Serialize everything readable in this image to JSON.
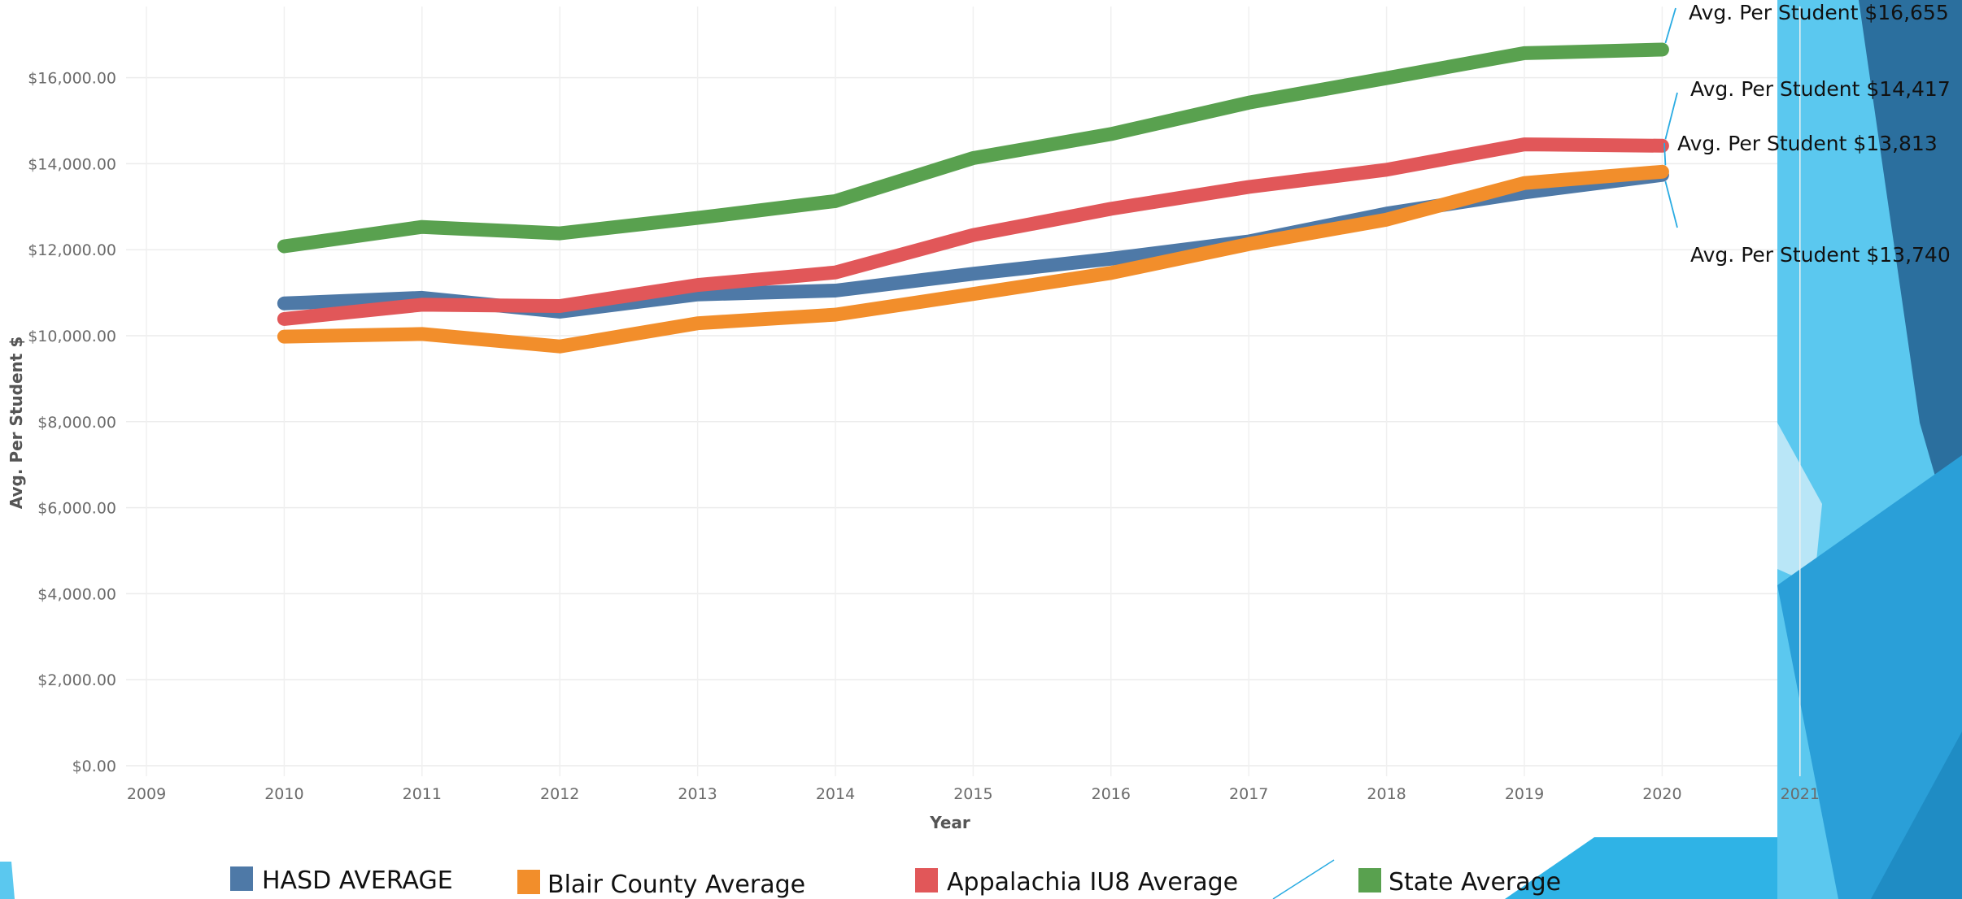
{
  "chart_data": {
    "type": "line",
    "title": "",
    "xlabel": "Year",
    "ylabel": "Avg. Per Student $",
    "x_ticks": [
      "2009",
      "2010",
      "2011",
      "2012",
      "2013",
      "2014",
      "2015",
      "2016",
      "2017",
      "2018",
      "2019",
      "2020",
      "2021"
    ],
    "y_ticks": [
      "$0.00",
      "$2,000.00",
      "$4,000.00",
      "$6,000.00",
      "$8,000.00",
      "$10,000.00",
      "$12,000.00",
      "$14,000.00",
      "$16,000.00"
    ],
    "xlim": [
      2009,
      2021
    ],
    "ylim": [
      0,
      17800
    ],
    "grid": true,
    "legend_position": "bottom",
    "x": [
      2010,
      2011,
      2012,
      2013,
      2014,
      2015,
      2016,
      2017,
      2018,
      2019,
      2020
    ],
    "series": [
      {
        "name": "HASD AVERAGE",
        "color": "#4e79a7",
        "values": [
          10750,
          10880,
          10560,
          10960,
          11050,
          11440,
          11790,
          12190,
          12840,
          13330,
          13740
        ]
      },
      {
        "name": "Blair County Average",
        "color": "#f28e2b",
        "values": [
          9980,
          10040,
          9750,
          10290,
          10490,
          10970,
          11460,
          12130,
          12700,
          13550,
          13813
        ]
      },
      {
        "name": "Appalachia IU8 Average",
        "color": "#e15759",
        "values": [
          10390,
          10720,
          10690,
          11180,
          11470,
          12340,
          12950,
          13460,
          13860,
          14450,
          14417
        ]
      },
      {
        "name": "State Average",
        "color": "#59a14f",
        "values": [
          12080,
          12530,
          12380,
          12740,
          13130,
          14130,
          14690,
          15420,
          15990,
          16570,
          16655
        ]
      }
    ],
    "annotations": [
      {
        "text": "Avg. Per Student $16,655",
        "series": "State Average"
      },
      {
        "text": "Avg. Per Student $14,417",
        "series": "Appalachia IU8 Average"
      },
      {
        "text": "Avg. Per Student $13,813",
        "series": "Blair County Average"
      },
      {
        "text": "Avg. Per Student $13,740",
        "series": "HASD AVERAGE"
      }
    ]
  },
  "decor": {
    "accent_light": "#5bc8ef",
    "accent_mid": "#2a9fd8",
    "accent_dark": "#2b6f9e",
    "callout_line": "#29abe2"
  }
}
